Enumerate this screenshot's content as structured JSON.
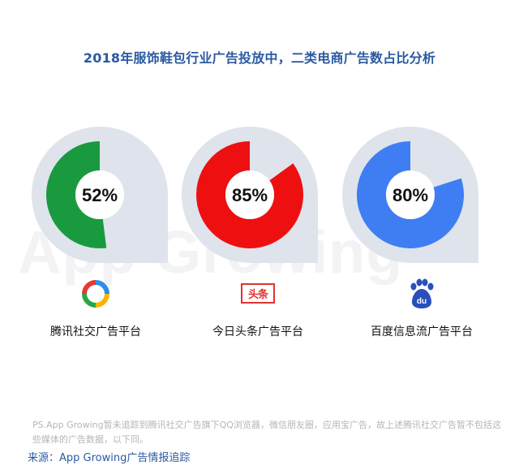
{
  "title": "2018年服饰鞋包行业广告投放中，二类电商广告数占比分析",
  "watermark": "App Growing",
  "chart_data": {
    "type": "donut",
    "title": "2018年服饰鞋包行业广告投放中，二类电商广告数占比分析",
    "unit": "%",
    "categories": [
      "腾讯社交广告平台",
      "今日头条广告平台",
      "百度信息流广告平台"
    ],
    "values": [
      52,
      85,
      80
    ],
    "value_labels": [
      "52%",
      "85%",
      "80%"
    ],
    "colors": [
      "#1a9a3f",
      "#ee1010",
      "#3f7ef2"
    ],
    "background_color": "#dfe3ec"
  },
  "platforms": [
    {
      "label": "腾讯社交广告平台",
      "logo": "tencent-social-ads-logo"
    },
    {
      "label": "今日头条广告平台",
      "logo": "toutiao-logo",
      "logo_text": "头条"
    },
    {
      "label": "百度信息流广告平台",
      "logo": "baidu-paw-logo",
      "logo_text": "du"
    }
  ],
  "note": "PS.App Growing暂未追踪到腾讯社交广告旗下QQ浏览器，微信朋友圈，应用宝广告，故上述腾讯社交广告暂不包括这些媒体的广告数据，以下同。",
  "source": "来源：App Growing广告情报追踪"
}
